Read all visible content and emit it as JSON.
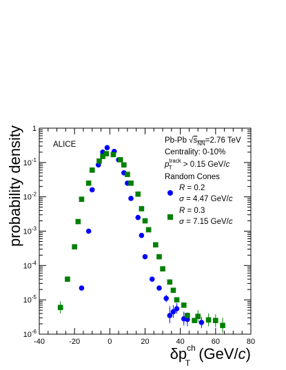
{
  "chart_data": {
    "type": "scatter",
    "xlabel_main": "δp",
    "xlabel_sup": "ch",
    "xlabel_sub": "T",
    "xlabel_unit_open": " (GeV/",
    "xlabel_unit_c": "c",
    "xlabel_unit_close": ")",
    "ylabel": "probability density",
    "xlim": [
      -40,
      80
    ],
    "ylim": [
      1e-06,
      1
    ],
    "yscale": "log",
    "xticks": [
      -40,
      -20,
      0,
      20,
      40,
      60,
      80
    ],
    "yticks": [
      {
        "value": 1e-06,
        "base": "10",
        "exp": "-6"
      },
      {
        "value": 1e-05,
        "base": "10",
        "exp": "-5"
      },
      {
        "value": 0.0001,
        "base": "10",
        "exp": "-4"
      },
      {
        "value": 0.001,
        "base": "10",
        "exp": "-3"
      },
      {
        "value": 0.01,
        "base": "10",
        "exp": "-2"
      },
      {
        "value": 0.1,
        "base": "10",
        "exp": "-1"
      },
      {
        "value": 1,
        "base": "1",
        "exp": ""
      }
    ],
    "annotation": "ALICE",
    "legend_header": {
      "line1_a": "Pb-Pb ",
      "line1_sqrt": "√",
      "line1_s": "s",
      "line1_sub": "NN",
      "line1_b": "=2.76 TeV",
      "line2": "Centrality: 0-10%",
      "line3_p": "p",
      "line3_sup": "track",
      "line3_sub": "T",
      "line3_b": " > 0.15 GeV/",
      "line3_c": "c",
      "line4": "Random Cones"
    },
    "legend_placement": "top-right",
    "series": [
      {
        "label_r": "R",
        "label_r_val": " = 0.2",
        "label_sigma": "σ",
        "label_sigma_val": " = 4.47 GeV/",
        "label_c": "c",
        "marker": "circle",
        "color": "#0000ff",
        "points": [
          {
            "x": -16,
            "y": 2.2e-05
          },
          {
            "x": -12,
            "y": 0.001
          },
          {
            "x": -10,
            "y": 0.016
          },
          {
            "x": -6.5,
            "y": 0.085
          },
          {
            "x": -4,
            "y": 0.2
          },
          {
            "x": -1.5,
            "y": 0.27
          },
          {
            "x": 2.5,
            "y": 0.21
          },
          {
            "x": 5,
            "y": 0.12
          },
          {
            "x": 8,
            "y": 0.05
          },
          {
            "x": 10,
            "y": 0.025
          },
          {
            "x": 12,
            "y": 0.009
          },
          {
            "x": 16,
            "y": 0.0025
          },
          {
            "x": 18,
            "y": 0.00075
          },
          {
            "x": 20,
            "y": 0.00018
          },
          {
            "x": 24,
            "y": 4e-05
          },
          {
            "x": 28,
            "y": 2.2e-05
          },
          {
            "x": 32,
            "y": 1.1e-05,
            "err": [
              8.5e-06,
              1.4e-05
            ]
          },
          {
            "x": 34,
            "y": 3.5e-06,
            "err": [
              2.1e-06,
              6.5e-06
            ]
          },
          {
            "x": 36,
            "y": 4.5e-06,
            "err": [
              3e-06,
              7e-06
            ]
          },
          {
            "x": 38,
            "y": 5.5e-06,
            "err": [
              4e-06,
              8e-06
            ]
          },
          {
            "x": 42,
            "y": 2.8e-06,
            "err": [
              1.8e-06,
              4.5e-06
            ]
          },
          {
            "x": 44,
            "y": 2.7e-06,
            "err": [
              1.7e-06,
              4.3e-06
            ]
          },
          {
            "x": 52,
            "y": 2.2e-06,
            "err": [
              1.5e-06,
              3.2e-06
            ]
          }
        ]
      },
      {
        "label_r": "R",
        "label_r_val": " = 0.3",
        "label_sigma": "σ",
        "label_sigma_val": " = 7.15 GeV/",
        "label_c": "c",
        "marker": "square",
        "color": "#008000",
        "points": [
          {
            "x": -28,
            "y": 6e-06,
            "err": [
              4e-06,
              9e-06
            ]
          },
          {
            "x": -24,
            "y": 4e-05
          },
          {
            "x": -20,
            "y": 0.00035
          },
          {
            "x": -18,
            "y": 0.0019
          },
          {
            "x": -16,
            "y": 0.0085
          },
          {
            "x": -12,
            "y": 0.025
          },
          {
            "x": -10,
            "y": 0.06
          },
          {
            "x": -6,
            "y": 0.11
          },
          {
            "x": -4,
            "y": 0.15
          },
          {
            "x": -2,
            "y": 0.18
          },
          {
            "x": 2,
            "y": 0.17
          },
          {
            "x": 6,
            "y": 0.12
          },
          {
            "x": 8,
            "y": 0.085
          },
          {
            "x": 10,
            "y": 0.045
          },
          {
            "x": 12,
            "y": 0.025
          },
          {
            "x": 16,
            "y": 0.012
          },
          {
            "x": 18,
            "y": 0.0045
          },
          {
            "x": 20,
            "y": 0.002
          },
          {
            "x": 22,
            "y": 0.0011
          },
          {
            "x": 26,
            "y": 0.0004
          },
          {
            "x": 28,
            "y": 0.00018
          },
          {
            "x": 30,
            "y": 8e-05
          },
          {
            "x": 34,
            "y": 3.3e-05
          },
          {
            "x": 36,
            "y": 1.9e-05
          },
          {
            "x": 38,
            "y": 1e-05
          },
          {
            "x": 42,
            "y": 7e-06
          },
          {
            "x": 44,
            "y": 3.5e-06
          },
          {
            "x": 48,
            "y": 2.5e-06
          },
          {
            "x": 50,
            "y": 3.3e-06,
            "err": [
              2.2e-06,
              5e-06
            ]
          },
          {
            "x": 56,
            "y": 2.6e-06,
            "err": [
              1.7e-06,
              4e-06
            ]
          },
          {
            "x": 60,
            "y": 2.5e-06,
            "err": [
              1.6e-06,
              3.8e-06
            ]
          },
          {
            "x": 64,
            "y": 1.8e-06,
            "err": [
              1.1e-06,
              3e-06
            ]
          }
        ]
      }
    ]
  }
}
